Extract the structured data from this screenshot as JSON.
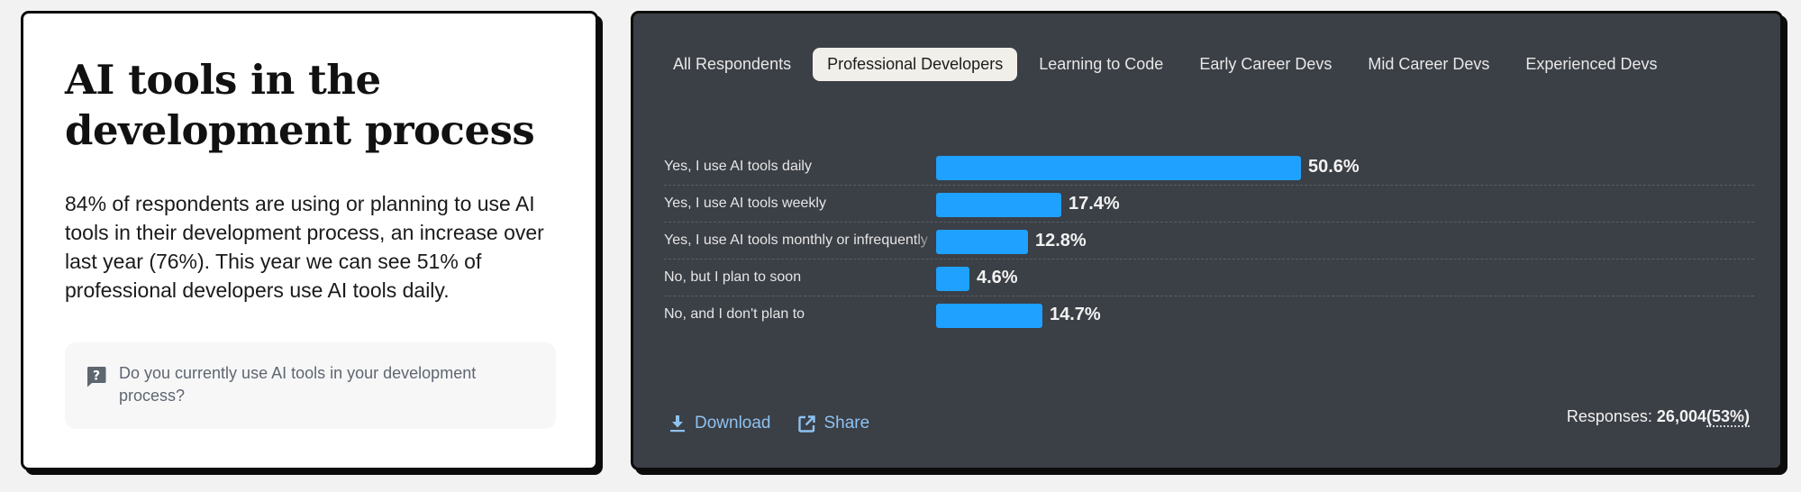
{
  "left_card": {
    "title": "AI tools in the development process",
    "description": "84% of respondents are using or planning to use AI tools in their development process, an increase over last year (76%). This year we can see 51% of professional developers use AI tools daily.",
    "question": {
      "icon": "question-bubble-icon",
      "text": "Do you currently use AI tools in your development process?"
    }
  },
  "right_card": {
    "tabs": [
      {
        "label": "All Respondents",
        "active": false
      },
      {
        "label": "Professional Developers",
        "active": true
      },
      {
        "label": "Learning to Code",
        "active": false
      },
      {
        "label": "Early Career Devs",
        "active": false
      },
      {
        "label": "Mid Career Devs",
        "active": false
      },
      {
        "label": "Experienced Devs",
        "active": false
      }
    ],
    "footer": {
      "download_label": "Download",
      "download_icon": "download-icon",
      "share_label": "Share",
      "share_icon": "external-link-icon",
      "responses_label": "Responses:",
      "responses_count": "26,004",
      "responses_pct": "(53%)"
    },
    "colors": {
      "bar": "#1ea1ff",
      "background": "#3b3f46",
      "link": "#8ec2f0"
    }
  },
  "chart_data": {
    "type": "bar",
    "orientation": "horizontal",
    "title": "Do you currently use AI tools in your development process?",
    "series_name": "Professional Developers",
    "categories": [
      "Yes, I use AI tools daily",
      "Yes, I use AI tools weekly",
      "Yes, I use AI tools monthly or infrequently",
      "No, but I plan to soon",
      "No, and I don't plan to"
    ],
    "display_labels": [
      "Yes, I use AI tools daily",
      "Yes, I use AI tools weekly",
      "Yes, I use AI tools monthly or infrequently",
      "No, but I plan to soon",
      "No, and I don't plan to"
    ],
    "values": [
      50.6,
      17.4,
      12.8,
      4.6,
      14.7
    ],
    "value_labels": [
      "50.6%",
      "17.4%",
      "12.8%",
      "4.6%",
      "14.7%"
    ],
    "unit": "%",
    "xlabel": "",
    "ylabel": "",
    "grid": "dashed row separators",
    "legend": "none"
  }
}
